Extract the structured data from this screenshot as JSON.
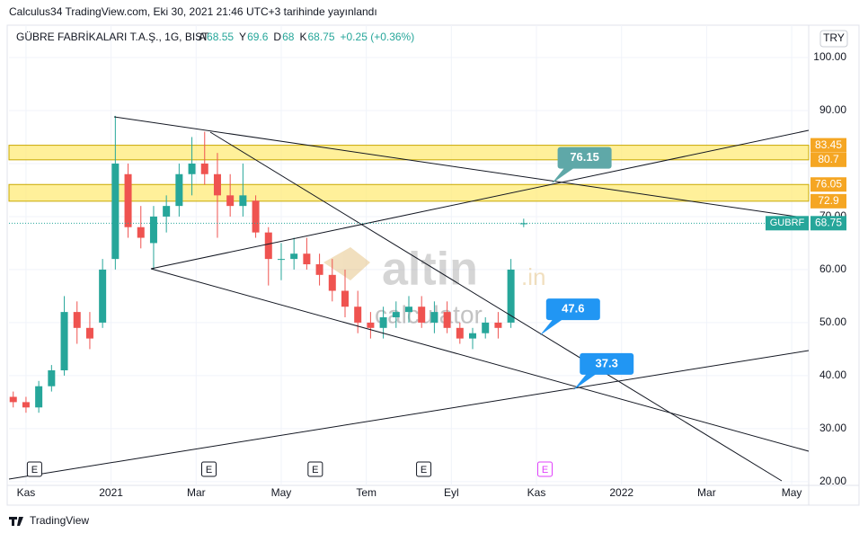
{
  "chart_data": {
    "type": "candlestick",
    "published": "Calculus34 TradingView.com, Eki 30, 2021 21:46 UTC+3 tarihinde yayınlandı",
    "symbol": "GÜBRE FABRİKALARI T.A.Ş., 1G, BIST",
    "legend_labels": {
      "open": "A",
      "high": "Y",
      "low": "D",
      "close": "K"
    },
    "change": "+0.25 (+0.36%)",
    "currency": "TRY",
    "ticker": "GUBRF",
    "x": [
      -0.3,
      0,
      0.3,
      0.6,
      0.9,
      1.2,
      1.5,
      1.8,
      2.1,
      2.4,
      2.7,
      3.0,
      3.3,
      3.6,
      3.9,
      4.2,
      4.5,
      4.8,
      5.1,
      5.4,
      5.7,
      6.0,
      6.3,
      6.6,
      6.9,
      7.2,
      7.5,
      7.8,
      8.1,
      8.4,
      8.7,
      9.0,
      9.3,
      9.6,
      9.9,
      10.2,
      10.5,
      10.8,
      11.1,
      11.4,
      11.7
    ],
    "ohlc": {
      "open": [
        36,
        35,
        34,
        38,
        41,
        52,
        49,
        50,
        62,
        78,
        68,
        65,
        70,
        72,
        78,
        80,
        78,
        74,
        72,
        73,
        67,
        62,
        62,
        63,
        61,
        59,
        56,
        53,
        50,
        49,
        51,
        52,
        53,
        50,
        52,
        49,
        47,
        48,
        50,
        50,
        68.55
      ],
      "high": [
        37,
        36,
        39,
        42,
        55,
        54,
        52,
        62,
        89,
        80,
        72,
        72,
        74,
        80,
        85,
        86,
        82,
        78,
        80,
        74,
        68,
        65,
        66,
        66,
        63,
        62,
        60,
        56,
        52,
        53,
        54,
        55,
        55,
        54,
        54,
        50,
        49,
        51,
        52,
        62,
        69.6
      ],
      "low": [
        34,
        33,
        33,
        37,
        40,
        46,
        45,
        49,
        60,
        66,
        64,
        60,
        67,
        70,
        74,
        76,
        66,
        70,
        70,
        66,
        57,
        58,
        60,
        60,
        57,
        54,
        51,
        48,
        47,
        47,
        49,
        50,
        49,
        48,
        48,
        46,
        45,
        47,
        47,
        49,
        68.0
      ],
      "close": [
        35,
        34,
        38,
        41,
        52,
        49,
        47,
        60,
        80,
        68,
        66,
        70,
        72,
        78,
        80,
        78,
        74,
        72,
        74,
        67,
        62,
        62,
        63,
        61,
        59,
        56,
        53,
        50,
        49,
        51,
        52,
        53,
        50,
        52,
        49,
        47,
        48,
        50,
        49,
        60,
        68.75
      ]
    },
    "up_color": "#26a69a",
    "down_color": "#ef5350",
    "zones": [
      {
        "high": 83.45,
        "low": 80.7
      },
      {
        "high": 76.05,
        "low": 72.9
      }
    ],
    "zone_color": "#f5a623",
    "annotations": [
      {
        "x": 12.35,
        "value": 76.15,
        "color": "#5fa8a8"
      },
      {
        "x": 12.08,
        "value": 47.6,
        "color": "#2196f3"
      },
      {
        "x": 12.87,
        "value": 37.3,
        "color": "#2196f3"
      }
    ],
    "earnings": {
      "x": [
        0.2,
        4.3,
        6.8,
        9.35,
        12.2
      ],
      "labels": [
        "E",
        "E",
        "E",
        "E",
        "E"
      ]
    },
    "xlim": [
      -0.4,
      18.4
    ],
    "xticks": [
      {
        "value": 0,
        "label": "Kas"
      },
      {
        "value": 2,
        "label": "2021"
      },
      {
        "value": 4,
        "label": "Mar"
      },
      {
        "value": 6,
        "label": "May"
      },
      {
        "value": 8,
        "label": "Tem"
      },
      {
        "value": 10,
        "label": "Eyl"
      },
      {
        "value": 12,
        "label": "Kas"
      },
      {
        "value": 14,
        "label": "2022"
      },
      {
        "value": 16,
        "label": "Mar"
      },
      {
        "value": 18,
        "label": "May"
      }
    ],
    "ylim": [
      19.3,
      106.1
    ],
    "yticks": [
      {
        "value": 20,
        "label": "20.00"
      },
      {
        "value": 30,
        "label": "30.00"
      },
      {
        "value": 40,
        "label": "40.00"
      },
      {
        "value": 50,
        "label": "50.00"
      },
      {
        "value": 60,
        "label": "60.00"
      },
      {
        "value": 70,
        "label": "70.00"
      },
      {
        "value": 80,
        "label": "80.00"
      },
      {
        "value": 90,
        "label": "90.00"
      },
      {
        "value": 100,
        "label": "100.00"
      }
    ],
    "grid": true,
    "watermark": [
      "altin",
      ".in",
      "calculator"
    ],
    "footer": "TradingView"
  }
}
